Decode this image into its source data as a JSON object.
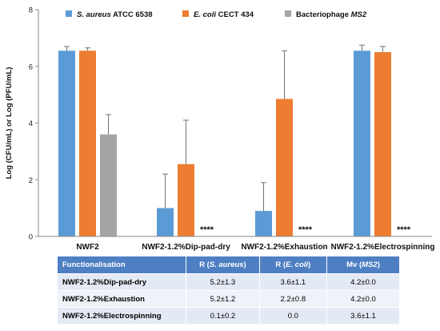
{
  "chart_data": {
    "type": "bar",
    "title": "",
    "xlabel": "",
    "ylabel": "Log (CFU/mL) or Log (PFU/mL)",
    "ylim": [
      0,
      8
    ],
    "yticks": [
      "0",
      "2",
      "4",
      "6",
      "8"
    ],
    "grid": false,
    "legend_position": "top",
    "categories": [
      "NWF2",
      "NWF2-1.2%Dip-pad-dry",
      "NWF2-1.2%Exhaustion",
      "NWF2-1.2%Electrospinning"
    ],
    "series": [
      {
        "name_italic": "S. aureus",
        "name_rest": " ATCC 6538",
        "color": "#5b9bd5",
        "values": [
          6.55,
          1.0,
          0.9,
          6.55
        ],
        "errors": [
          0.15,
          1.2,
          1.0,
          0.2
        ]
      },
      {
        "name_italic": "E. coli",
        "name_rest": " CECT 434",
        "color": "#ed7d31",
        "values": [
          6.55,
          2.55,
          4.85,
          6.5
        ],
        "errors": [
          0.1,
          1.55,
          1.7,
          0.2
        ]
      },
      {
        "name_rest": "Bacteriophage ",
        "name_italic_after": "MS2",
        "color": "#a5a5a5",
        "values": [
          3.6,
          0,
          0,
          0
        ],
        "errors": [
          0.7,
          0,
          0,
          0
        ]
      }
    ],
    "annotations": [
      {
        "category": 1,
        "series": 2,
        "text": "****"
      },
      {
        "category": 2,
        "series": 2,
        "text": "****"
      },
      {
        "category": 3,
        "series": 2,
        "text": "****"
      }
    ]
  },
  "table": {
    "header": {
      "c1": "Functionalisation",
      "c2_pre": "R (",
      "c2_it": "S. aureus",
      "c2_post": ")",
      "c3_pre": "R (",
      "c3_it": "E. coli",
      "c3_post": ")",
      "c4_pre": "Mv (",
      "c4_it": "MS2",
      "c4_post": ")"
    },
    "rows": [
      {
        "name": "NWF2-1.2%Dip-pad-dry",
        "r_sa": "5.2±1.3",
        "r_ec": "3.6±1.1",
        "mv": "4.2±0.0"
      },
      {
        "name": "NWF2-1.2%Exhaustion",
        "r_sa": "5.2±1.2",
        "r_ec": "2.2±0.8",
        "mv": "4.2±0.0"
      },
      {
        "name": "NWF2-1.2%Electrospinning",
        "r_sa": "0.1±0.2",
        "r_ec": "0.0",
        "mv": "3.6±1.1"
      }
    ]
  }
}
